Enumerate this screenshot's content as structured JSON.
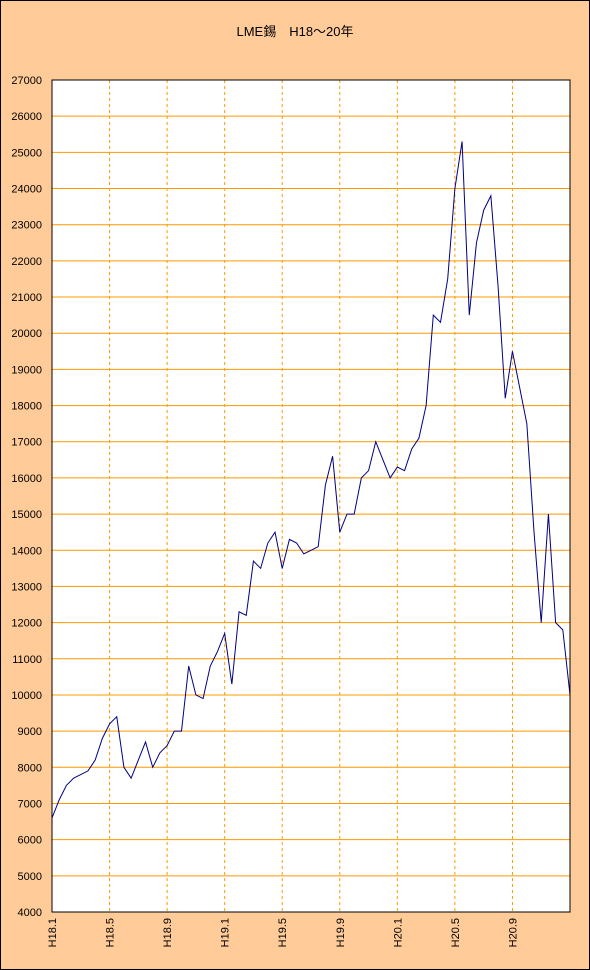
{
  "chart_data": {
    "type": "line",
    "title": "LME錫　H18〜20年",
    "categories": [
      "H18.1",
      null,
      null,
      null,
      null,
      null,
      null,
      null,
      "H18.5",
      null,
      null,
      null,
      null,
      null,
      null,
      null,
      "H18.9",
      null,
      null,
      null,
      null,
      null,
      null,
      null,
      "H19.1",
      null,
      null,
      null,
      null,
      null,
      null,
      null,
      "H19.5",
      null,
      null,
      null,
      null,
      null,
      null,
      null,
      "H19.9",
      null,
      null,
      null,
      null,
      null,
      null,
      null,
      "H20.1",
      null,
      null,
      null,
      null,
      null,
      null,
      null,
      "H20.5",
      null,
      null,
      null,
      null,
      null,
      null,
      null,
      "H20.9",
      null,
      null,
      null,
      null,
      null,
      null,
      null,
      null
    ],
    "series": [
      {
        "color": "#000080",
        "values": [
          6600,
          7100,
          7500,
          7700,
          7800,
          7900,
          8200,
          8800,
          9200,
          9400,
          8000,
          7700,
          8200,
          8700,
          8000,
          8400,
          8600,
          9000,
          9000,
          10800,
          10000,
          9900,
          10800,
          11200,
          11700,
          10300,
          12300,
          12200,
          13700,
          13500,
          14200,
          14500,
          13500,
          14300,
          14200,
          13900,
          14000,
          14100,
          15800,
          16600,
          14500,
          15000,
          15000,
          16000,
          16200,
          17000,
          16500,
          16000,
          16300,
          16200,
          16800,
          17100,
          18000,
          20500,
          20300,
          21500,
          24000,
          25300,
          20500,
          22500,
          23400,
          23800,
          21300,
          18200,
          19500,
          18500,
          17500,
          14500,
          12000,
          15000,
          12000,
          11800,
          10000
        ]
      }
    ],
    "ylim": [
      4000,
      27000
    ],
    "yticks": [
      4000,
      5000,
      6000,
      7000,
      8000,
      9000,
      10000,
      11000,
      12000,
      13000,
      14000,
      15000,
      16000,
      17000,
      18000,
      19000,
      20000,
      21000,
      22000,
      23000,
      24000,
      25000,
      26000,
      27000
    ],
    "grid": true
  }
}
